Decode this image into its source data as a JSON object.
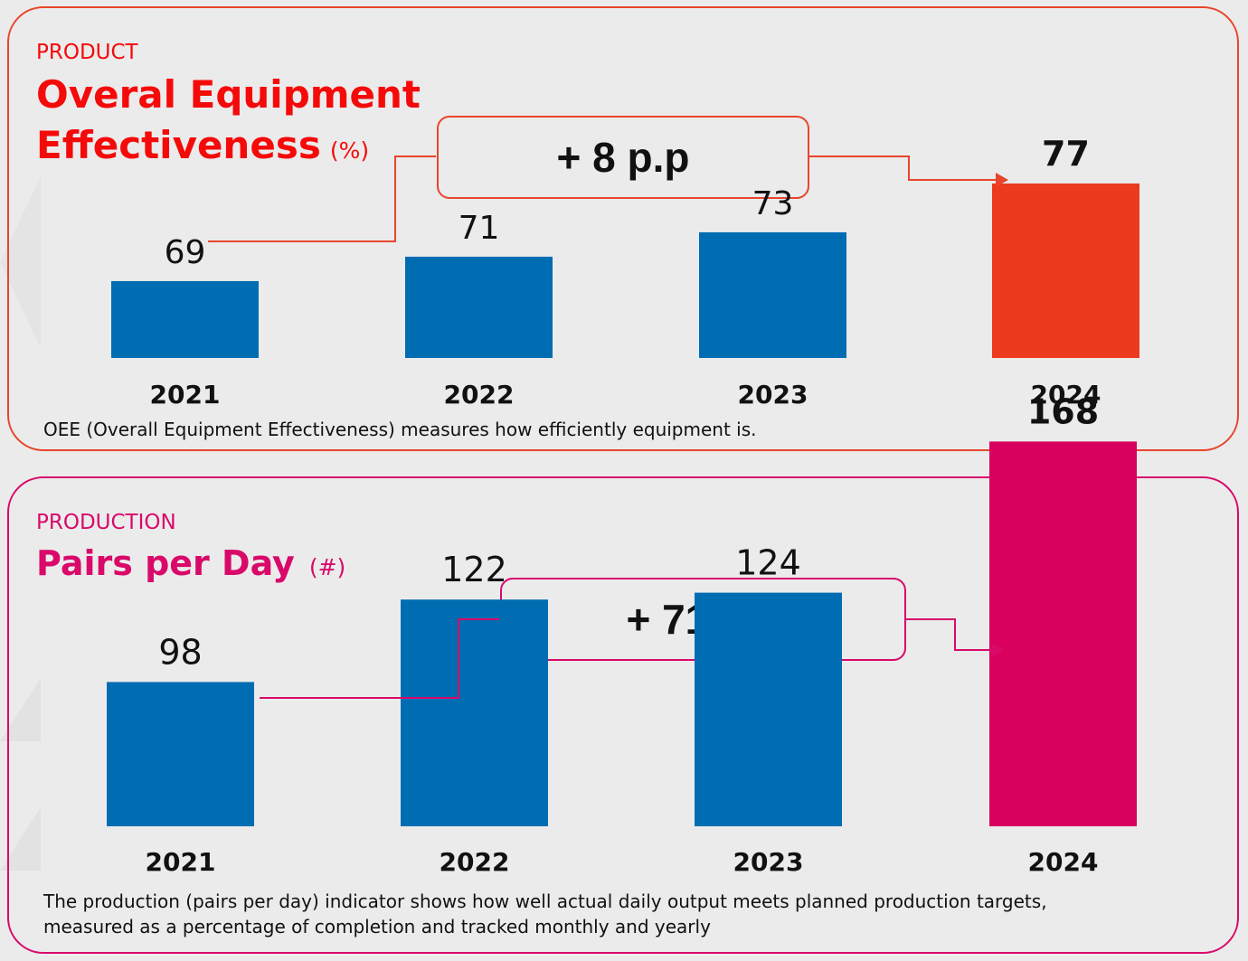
{
  "colors": {
    "product_accent": "#e8452c",
    "product_title": "#f50a0a",
    "production_accent": "#d9096a",
    "bar_blue": "#006db3",
    "bar_highlight_product": "#eb3a1e",
    "bar_highlight_production": "#d9005e",
    "text": "#111111",
    "background": "#ebebeb"
  },
  "panels": [
    {
      "kicker": "PRODUCT",
      "title_line1": "Overal Equipment",
      "title_line2": "Effectiveness",
      "unit": "(%)",
      "delta": "+ 8 p.p",
      "description": "OEE (Overall Equipment Effectiveness) measures how efficiently equipment is."
    },
    {
      "kicker": "PRODUCTION",
      "title_line1": "Pairs per Day",
      "unit": "(#)",
      "delta": "+ 71,4%",
      "description_line1": "The production (pairs per day) indicator shows how well actual daily output meets planned production targets,",
      "description_line2": "measured as a percentage of completion and tracked monthly and yearly"
    }
  ],
  "chart_data": [
    {
      "type": "bar",
      "title": "Overal Equipment Effectiveness (%)",
      "categories": [
        "2021",
        "2022",
        "2023",
        "2024"
      ],
      "values": [
        69,
        71,
        73,
        77
      ],
      "value_labels": [
        "69",
        "71",
        "73",
        "77"
      ],
      "highlight_index": 3,
      "annotation": "+ 8 p.p",
      "annotation_from": "2021",
      "annotation_to": "2024",
      "xlabel": "",
      "ylabel": "",
      "grid": false,
      "legend": "none"
    },
    {
      "type": "bar",
      "title": "Pairs per Day (#)",
      "categories": [
        "2021",
        "2022",
        "2023",
        "2024"
      ],
      "values": [
        98,
        122,
        124,
        168
      ],
      "value_labels": [
        "98",
        "122",
        "124",
        "168"
      ],
      "highlight_index": 3,
      "annotation": "+ 71,4%",
      "annotation_from": "2021",
      "annotation_to": "2024",
      "xlabel": "",
      "ylabel": "",
      "grid": false,
      "legend": "none"
    }
  ]
}
